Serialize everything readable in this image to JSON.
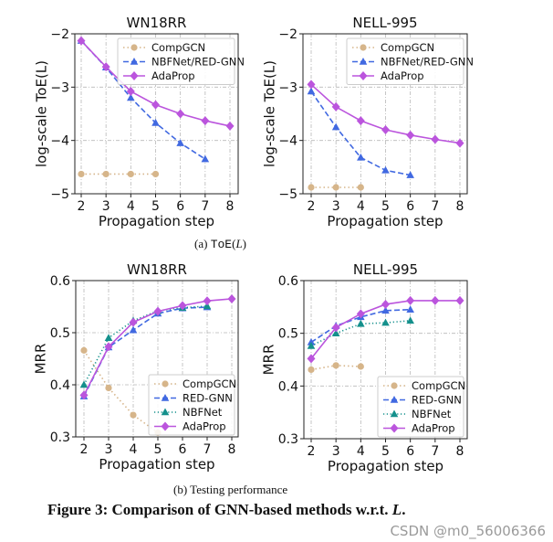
{
  "captions": {
    "a_prefix": "(a)",
    "a_mono": "ToE",
    "a_paren_open": "(",
    "a_var": "L",
    "a_paren_close": ")",
    "b": "(b)  Testing performance",
    "figure": "Figure 3: Comparison of GNN-based methods w.r.t. ",
    "figure_var": "L",
    "figure_end": "."
  },
  "watermark": "CSDN @m0_56006366",
  "colors": {
    "CompGCN": "#d6b58a",
    "NBFNet/RED-GNN": "#4169e1",
    "RED-GNN": "#4169e1",
    "NBFNet": "#14908c",
    "AdaProp": "#bb55dd"
  },
  "chart_data": [
    {
      "type": "line",
      "title": "WN18RR",
      "xlabel": "Propagation step",
      "ylabel": "log-scale ToE(L)",
      "xlim": [
        2,
        8
      ],
      "ylim": [
        -5,
        -2
      ],
      "xticks": [
        2,
        3,
        4,
        5,
        6,
        7,
        8
      ],
      "yticks": [
        -5,
        -4,
        -3,
        -2
      ],
      "grid": true,
      "legend": "top-right",
      "series": [
        {
          "name": "CompGCN",
          "marker": "circle",
          "style": "dotted",
          "x": [
            2,
            3,
            4,
            5
          ],
          "y": [
            -4.63,
            -4.63,
            -4.63,
            -4.63
          ]
        },
        {
          "name": "NBFNet/RED-GNN",
          "marker": "triangle",
          "style": "dashed",
          "x": [
            2,
            3,
            4,
            5,
            6,
            7
          ],
          "y": [
            -2.13,
            -2.63,
            -3.2,
            -3.67,
            -4.05,
            -4.35
          ]
        },
        {
          "name": "AdaProp",
          "marker": "diamond",
          "style": "solid",
          "x": [
            2,
            3,
            4,
            5,
            6,
            7,
            8
          ],
          "y": [
            -2.13,
            -2.62,
            -3.08,
            -3.33,
            -3.5,
            -3.63,
            -3.73
          ]
        }
      ]
    },
    {
      "type": "line",
      "title": "NELL-995",
      "xlabel": "Propagation step",
      "ylabel": "log-scale ToE(L)",
      "xlim": [
        2,
        8
      ],
      "ylim": [
        -5,
        -2
      ],
      "xticks": [
        2,
        3,
        4,
        5,
        6,
        7,
        8
      ],
      "yticks": [
        -5,
        -4,
        -3,
        -2
      ],
      "grid": true,
      "legend": "top-right",
      "series": [
        {
          "name": "CompGCN",
          "marker": "circle",
          "style": "dotted",
          "x": [
            2,
            3,
            4
          ],
          "y": [
            -4.88,
            -4.88,
            -4.88
          ]
        },
        {
          "name": "NBFNet/RED-GNN",
          "marker": "triangle",
          "style": "dashed",
          "x": [
            2,
            3,
            4,
            5,
            6
          ],
          "y": [
            -3.08,
            -3.75,
            -4.32,
            -4.56,
            -4.65
          ]
        },
        {
          "name": "AdaProp",
          "marker": "diamond",
          "style": "solid",
          "x": [
            2,
            3,
            4,
            5,
            6,
            7,
            8
          ],
          "y": [
            -2.95,
            -3.37,
            -3.63,
            -3.8,
            -3.9,
            -3.98,
            -4.05
          ]
        }
      ]
    },
    {
      "type": "line",
      "title": "WN18RR",
      "xlabel": "Propagation step",
      "ylabel": "MRR",
      "xlim": [
        2,
        8
      ],
      "ylim": [
        0.3,
        0.6
      ],
      "xticks": [
        2,
        3,
        4,
        5,
        6,
        7,
        8
      ],
      "yticks": [
        0.3,
        0.4,
        0.5,
        0.6
      ],
      "grid": true,
      "legend": "bottom-right",
      "series": [
        {
          "name": "CompGCN",
          "marker": "circle",
          "style": "dotted",
          "x": [
            2,
            3,
            4,
            5
          ],
          "y": [
            0.466,
            0.394,
            0.342,
            0.308
          ]
        },
        {
          "name": "RED-GNN",
          "marker": "triangle",
          "style": "dashed",
          "x": [
            2,
            3,
            4,
            5,
            6,
            7
          ],
          "y": [
            0.378,
            0.472,
            0.505,
            0.537,
            0.547,
            0.549
          ]
        },
        {
          "name": "NBFNet",
          "marker": "triangle",
          "style": "dotted-fine",
          "x": [
            2,
            3,
            4,
            5,
            6,
            7
          ],
          "y": [
            0.4,
            0.49,
            0.523,
            0.542,
            0.548,
            0.551
          ]
        },
        {
          "name": "AdaProp",
          "marker": "diamond",
          "style": "solid",
          "x": [
            2,
            3,
            4,
            5,
            6,
            7,
            8
          ],
          "y": [
            0.38,
            0.473,
            0.52,
            0.541,
            0.552,
            0.561,
            0.565
          ]
        }
      ]
    },
    {
      "type": "line",
      "title": "NELL-995",
      "xlabel": "Propagation step",
      "ylabel": "MRR",
      "xlim": [
        2,
        8
      ],
      "ylim": [
        0.3,
        0.6
      ],
      "xticks": [
        2,
        3,
        4,
        5,
        6,
        7,
        8
      ],
      "yticks": [
        0.3,
        0.4,
        0.5,
        0.6
      ],
      "grid": true,
      "legend": "bottom-right",
      "series": [
        {
          "name": "CompGCN",
          "marker": "circle",
          "style": "dotted",
          "x": [
            2,
            3,
            4
          ],
          "y": [
            0.431,
            0.439,
            0.437
          ]
        },
        {
          "name": "RED-GNN",
          "marker": "triangle",
          "style": "dashed",
          "x": [
            2,
            3,
            4,
            5,
            6
          ],
          "y": [
            0.483,
            0.514,
            0.531,
            0.543,
            0.545
          ]
        },
        {
          "name": "NBFNet",
          "marker": "triangle",
          "style": "dotted-fine",
          "x": [
            2,
            3,
            4,
            5,
            6
          ],
          "y": [
            0.476,
            0.5,
            0.518,
            0.52,
            0.524
          ]
        },
        {
          "name": "AdaProp",
          "marker": "diamond",
          "style": "solid",
          "x": [
            2,
            3,
            4,
            5,
            6,
            7,
            8
          ],
          "y": [
            0.452,
            0.511,
            0.537,
            0.555,
            0.562,
            0.562,
            0.562
          ]
        }
      ]
    }
  ]
}
